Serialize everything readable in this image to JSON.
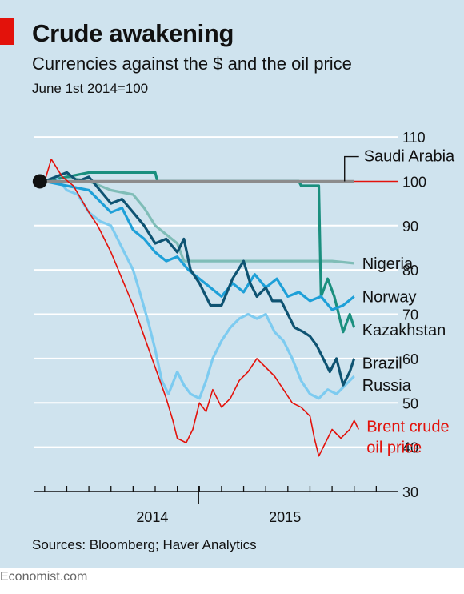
{
  "header": {
    "title": "Crude awakening",
    "subtitle": "Currencies against the $ and the oil price",
    "units": "June 1st 2014=100"
  },
  "footer": {
    "sources": "Sources: Bloomberg; Haver Analytics",
    "brand": "Economist.com"
  },
  "colors": {
    "background": "#cfe3ee",
    "saudi": "#8c8c8c",
    "nigeria": "#7fbdb7",
    "kazakhstan": "#1a8f7e",
    "norway": "#1ea0d8",
    "brazil": "#0e5372",
    "russia": "#7dcbf0",
    "brent": "#e3120b",
    "accent": "#e3120b"
  },
  "chart_data": {
    "type": "line",
    "x_unit": "month index (0 = June 2014)",
    "xticks": [
      {
        "x": 0,
        "label": ""
      },
      {
        "x": 1,
        "label": ""
      },
      {
        "x": 2,
        "label": ""
      },
      {
        "x": 3,
        "label": ""
      },
      {
        "x": 4,
        "label": "2014"
      },
      {
        "x": 5,
        "label": ""
      },
      {
        "x": 6,
        "label": ""
      },
      {
        "x": 7,
        "label": ""
      },
      {
        "x": 8,
        "label": ""
      },
      {
        "x": 9,
        "label": ""
      },
      {
        "x": 10,
        "label": "2015"
      },
      {
        "x": 11,
        "label": ""
      },
      {
        "x": 12,
        "label": ""
      },
      {
        "x": 13,
        "label": ""
      },
      {
        "x": 14,
        "label": ""
      },
      {
        "x": 15,
        "label": ""
      }
    ],
    "year_dividers": [
      7
    ],
    "xlim": [
      -0.5,
      16
    ],
    "ylim": [
      30,
      112
    ],
    "yticks": [
      30,
      40,
      50,
      60,
      70,
      80,
      90,
      100,
      110
    ],
    "reference_line": 100,
    "start_point": {
      "x": 0,
      "y": 100
    },
    "series": [
      {
        "name": "Brent crude oil price",
        "label_lines": [
          "Brent crude",
          "oil price"
        ],
        "color_key": "brent",
        "points": [
          [
            0,
            100
          ],
          [
            0.3,
            105
          ],
          [
            0.8,
            101
          ],
          [
            1.3,
            99
          ],
          [
            2,
            93
          ],
          [
            2.4,
            90
          ],
          [
            3,
            84
          ],
          [
            3.5,
            78
          ],
          [
            4,
            72
          ],
          [
            4.5,
            65
          ],
          [
            5,
            58
          ],
          [
            5.5,
            51
          ],
          [
            5.8,
            46
          ],
          [
            6,
            42
          ],
          [
            6.4,
            41
          ],
          [
            6.7,
            44
          ],
          [
            7,
            50
          ],
          [
            7.3,
            48
          ],
          [
            7.6,
            53
          ],
          [
            8,
            49
          ],
          [
            8.4,
            51
          ],
          [
            8.8,
            55
          ],
          [
            9.2,
            57
          ],
          [
            9.6,
            60
          ],
          [
            10,
            58
          ],
          [
            10.4,
            56
          ],
          [
            10.8,
            53
          ],
          [
            11.2,
            50
          ],
          [
            11.6,
            49
          ],
          [
            12,
            47
          ],
          [
            12.2,
            42
          ],
          [
            12.4,
            38
          ],
          [
            12.7,
            41
          ],
          [
            13,
            44
          ],
          [
            13.4,
            42
          ],
          [
            13.8,
            44
          ],
          [
            14,
            46
          ],
          [
            14.2,
            44
          ]
        ],
        "label_y": 44.5
      },
      {
        "name": "Saudi Arabia",
        "color_key": "saudi",
        "points": [
          [
            0,
            100
          ],
          [
            14,
            100
          ]
        ],
        "label_y": 104.5
      },
      {
        "name": "Nigeria",
        "color_key": "nigeria",
        "points": [
          [
            0,
            100
          ],
          [
            1,
            101
          ],
          [
            2,
            100
          ],
          [
            3,
            98
          ],
          [
            4,
            97
          ],
          [
            4.5,
            94
          ],
          [
            5,
            90
          ],
          [
            5.5,
            88
          ],
          [
            6,
            86
          ],
          [
            6.3,
            82
          ],
          [
            6.8,
            82
          ],
          [
            8,
            82
          ],
          [
            10,
            82
          ],
          [
            12,
            82
          ],
          [
            13,
            82
          ],
          [
            14,
            81.5
          ]
        ],
        "label_y": 81.5
      },
      {
        "name": "Kazakhstan",
        "color_key": "kazakhstan",
        "points": [
          [
            0,
            100
          ],
          [
            2,
            102
          ],
          [
            5,
            102
          ],
          [
            5.1,
            100
          ],
          [
            11.5,
            100
          ],
          [
            11.6,
            99
          ],
          [
            12.4,
            99
          ],
          [
            12.5,
            74
          ],
          [
            12.8,
            78
          ],
          [
            13.1,
            74
          ],
          [
            13.5,
            66
          ],
          [
            13.8,
            70
          ],
          [
            14,
            67
          ]
        ],
        "label_y": 66.5
      },
      {
        "name": "Norway",
        "color_key": "norway",
        "points": [
          [
            0,
            100
          ],
          [
            1,
            99
          ],
          [
            2,
            98
          ],
          [
            3,
            93
          ],
          [
            3.5,
            94
          ],
          [
            4,
            89
          ],
          [
            4.5,
            87
          ],
          [
            5,
            84
          ],
          [
            5.5,
            82
          ],
          [
            6,
            83
          ],
          [
            6.5,
            80
          ],
          [
            7,
            78
          ],
          [
            7.5,
            76
          ],
          [
            8,
            74
          ],
          [
            8.5,
            77
          ],
          [
            9,
            75
          ],
          [
            9.5,
            79
          ],
          [
            10,
            76
          ],
          [
            10.5,
            78
          ],
          [
            11,
            74
          ],
          [
            11.5,
            75
          ],
          [
            12,
            73
          ],
          [
            12.5,
            74
          ],
          [
            13,
            71
          ],
          [
            13.5,
            72
          ],
          [
            14,
            74
          ]
        ],
        "label_y": 74
      },
      {
        "name": "Brazil",
        "color_key": "brazil",
        "points": [
          [
            0,
            100
          ],
          [
            1,
            102
          ],
          [
            1.5,
            100
          ],
          [
            2,
            101
          ],
          [
            2.5,
            98
          ],
          [
            3,
            95
          ],
          [
            3.5,
            96
          ],
          [
            4,
            93
          ],
          [
            4.5,
            90
          ],
          [
            5,
            86
          ],
          [
            5.5,
            87
          ],
          [
            6,
            84
          ],
          [
            6.3,
            87
          ],
          [
            6.6,
            80
          ],
          [
            7,
            77
          ],
          [
            7.5,
            72
          ],
          [
            8,
            72
          ],
          [
            8.5,
            78
          ],
          [
            9,
            82
          ],
          [
            9.3,
            77
          ],
          [
            9.6,
            74
          ],
          [
            10,
            76
          ],
          [
            10.3,
            73
          ],
          [
            10.7,
            73
          ],
          [
            11,
            70
          ],
          [
            11.3,
            67
          ],
          [
            11.7,
            66
          ],
          [
            12,
            65
          ],
          [
            12.3,
            63
          ],
          [
            12.6,
            60
          ],
          [
            12.9,
            57
          ],
          [
            13.2,
            60
          ],
          [
            13.5,
            54
          ],
          [
            13.8,
            57
          ],
          [
            14,
            60
          ]
        ],
        "label_y": 59
      },
      {
        "name": "Russia",
        "color_key": "russia",
        "points": [
          [
            0,
            100
          ],
          [
            0.5,
            101
          ],
          [
            1,
            98
          ],
          [
            1.5,
            97
          ],
          [
            2,
            93
          ],
          [
            2.5,
            91
          ],
          [
            3,
            90
          ],
          [
            3.5,
            85
          ],
          [
            4,
            80
          ],
          [
            4.3,
            75
          ],
          [
            4.7,
            68
          ],
          [
            5,
            62
          ],
          [
            5.3,
            55
          ],
          [
            5.6,
            52
          ],
          [
            6,
            57
          ],
          [
            6.3,
            54
          ],
          [
            6.6,
            52
          ],
          [
            7,
            51
          ],
          [
            7.3,
            55
          ],
          [
            7.6,
            60
          ],
          [
            8,
            64
          ],
          [
            8.4,
            67
          ],
          [
            8.8,
            69
          ],
          [
            9.2,
            70
          ],
          [
            9.6,
            69
          ],
          [
            10,
            70
          ],
          [
            10.4,
            66
          ],
          [
            10.8,
            64
          ],
          [
            11.2,
            60
          ],
          [
            11.6,
            55
          ],
          [
            12,
            52
          ],
          [
            12.4,
            51
          ],
          [
            12.8,
            53
          ],
          [
            13.2,
            52
          ],
          [
            13.6,
            54
          ],
          [
            14,
            56
          ]
        ],
        "label_y": 54
      }
    ]
  }
}
